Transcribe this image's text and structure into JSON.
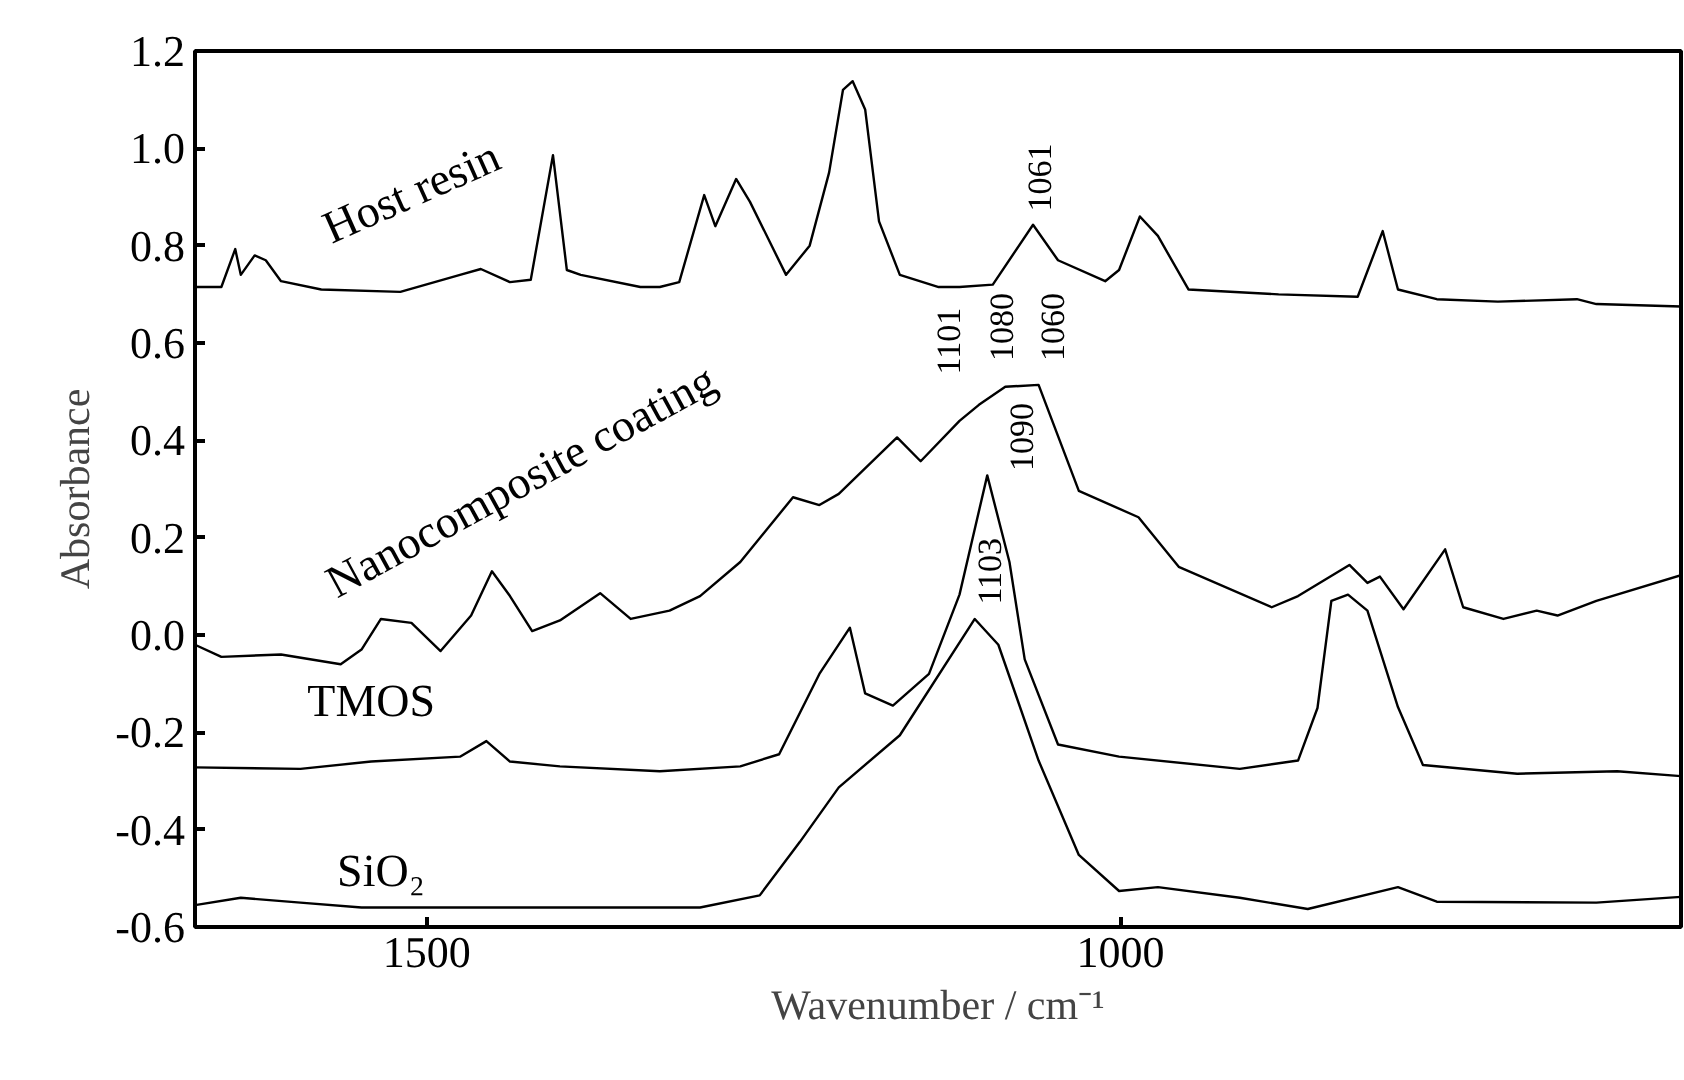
{
  "chart_data": {
    "type": "line",
    "xlabel": "Wavenumber / cm⁻¹",
    "ylabel": "Absorbance",
    "xlim": [
      1667,
      596
    ],
    "xticks": [
      1500,
      1000
    ],
    "ylim": [
      -0.6,
      1.2
    ],
    "yticks": [
      {
        "value": 1.2,
        "label": "1.2"
      },
      {
        "value": 1.0,
        "label": "1.0"
      },
      0.8,
      0.6,
      0.4,
      0.2,
      {
        "value": 0,
        "label": "0.0"
      },
      -0.2,
      -0.4,
      -0.6
    ],
    "grid": false,
    "marker": "none",
    "line_style": "solid",
    "series": [
      {
        "name": "Host resin",
        "color": "#000000",
        "x": [
          1667,
          1648,
          1638,
          1634,
          1624,
          1616,
          1605,
          1576,
          1519,
          1476,
          1461,
          1440,
          1425,
          1409,
          1399,
          1389,
          1346,
          1332,
          1318,
          1300,
          1292,
          1277,
          1267,
          1241,
          1224,
          1210,
          1200,
          1193,
          1184,
          1174,
          1159,
          1131,
          1116,
          1092,
          1063,
          1045,
          1011,
          1001,
          986,
          973,
          951,
          886,
          829,
          811,
          800,
          772,
          728,
          671,
          657,
          596
        ],
        "values": [
          0.715,
          0.715,
          0.793,
          0.74,
          0.78,
          0.77,
          0.727,
          0.71,
          0.705,
          0.74,
          0.752,
          0.725,
          0.73,
          0.986,
          0.75,
          0.74,
          0.715,
          0.715,
          0.725,
          0.904,
          0.84,
          0.937,
          0.89,
          0.74,
          0.8,
          0.95,
          1.12,
          1.138,
          1.08,
          0.85,
          0.74,
          0.715,
          0.715,
          0.72,
          0.843,
          0.77,
          0.727,
          0.75,
          0.86,
          0.82,
          0.71,
          0.7,
          0.695,
          0.83,
          0.71,
          0.69,
          0.685,
          0.69,
          0.68,
          0.675
        ]
      },
      {
        "name": "Nanocomposite coating",
        "color": "#000000",
        "x": [
          1667,
          1648,
          1605,
          1562,
          1547,
          1533,
          1511,
          1490,
          1468,
          1453,
          1440,
          1424,
          1404,
          1375,
          1353,
          1325,
          1303,
          1274,
          1236,
          1217,
          1203,
          1161,
          1144,
          1116,
          1102,
          1083,
          1059,
          1030,
          987,
          958,
          891,
          872,
          835,
          822,
          813,
          796,
          766,
          753,
          724,
          700,
          685,
          657,
          596
        ],
        "values": [
          -0.02,
          -0.045,
          -0.04,
          -0.06,
          -0.03,
          0.033,
          0.025,
          -0.033,
          0.04,
          0.131,
          0.08,
          0.008,
          0.03,
          0.086,
          0.033,
          0.05,
          0.08,
          0.15,
          0.283,
          0.267,
          0.29,
          0.406,
          0.357,
          0.44,
          0.473,
          0.51,
          0.514,
          0.296,
          0.242,
          0.14,
          0.057,
          0.08,
          0.144,
          0.107,
          0.12,
          0.053,
          0.176,
          0.057,
          0.033,
          0.05,
          0.04,
          0.07,
          0.123
        ]
      },
      {
        "name": "TMOS",
        "color": "#000000",
        "x": [
          1667,
          1591,
          1540,
          1476,
          1457,
          1440,
          1404,
          1332,
          1274,
          1246,
          1217,
          1195,
          1184,
          1164,
          1138,
          1116,
          1096,
          1080,
          1069,
          1045,
          1001,
          914,
          872,
          858,
          848,
          836,
          822,
          800,
          782,
          714,
          642,
          596
        ],
        "values": [
          -0.272,
          -0.275,
          -0.26,
          -0.25,
          -0.218,
          -0.26,
          -0.27,
          -0.28,
          -0.27,
          -0.245,
          -0.08,
          0.015,
          -0.12,
          -0.145,
          -0.08,
          0.083,
          0.328,
          0.15,
          -0.05,
          -0.225,
          -0.25,
          -0.275,
          -0.258,
          -0.15,
          0.07,
          0.083,
          0.05,
          -0.148,
          -0.267,
          -0.285,
          -0.28,
          -0.29
        ]
      },
      {
        "name": "SiO₂",
        "color": "#000000",
        "x": [
          1667,
          1634,
          1591,
          1547,
          1447,
          1303,
          1260,
          1231,
          1203,
          1159,
          1105,
          1088,
          1059,
          1030,
          1001,
          973,
          914,
          865,
          800,
          772,
          657,
          596
        ],
        "values": [
          -0.555,
          -0.54,
          -0.55,
          -0.56,
          -0.56,
          -0.56,
          -0.535,
          -0.425,
          -0.313,
          -0.206,
          0.033,
          -0.02,
          -0.258,
          -0.452,
          -0.526,
          -0.518,
          -0.54,
          -0.563,
          -0.518,
          -0.548,
          -0.55,
          -0.538
        ]
      }
    ],
    "annotations": [
      "1061",
      "1101",
      "1080",
      "1060",
      "1090",
      "1103"
    ]
  }
}
